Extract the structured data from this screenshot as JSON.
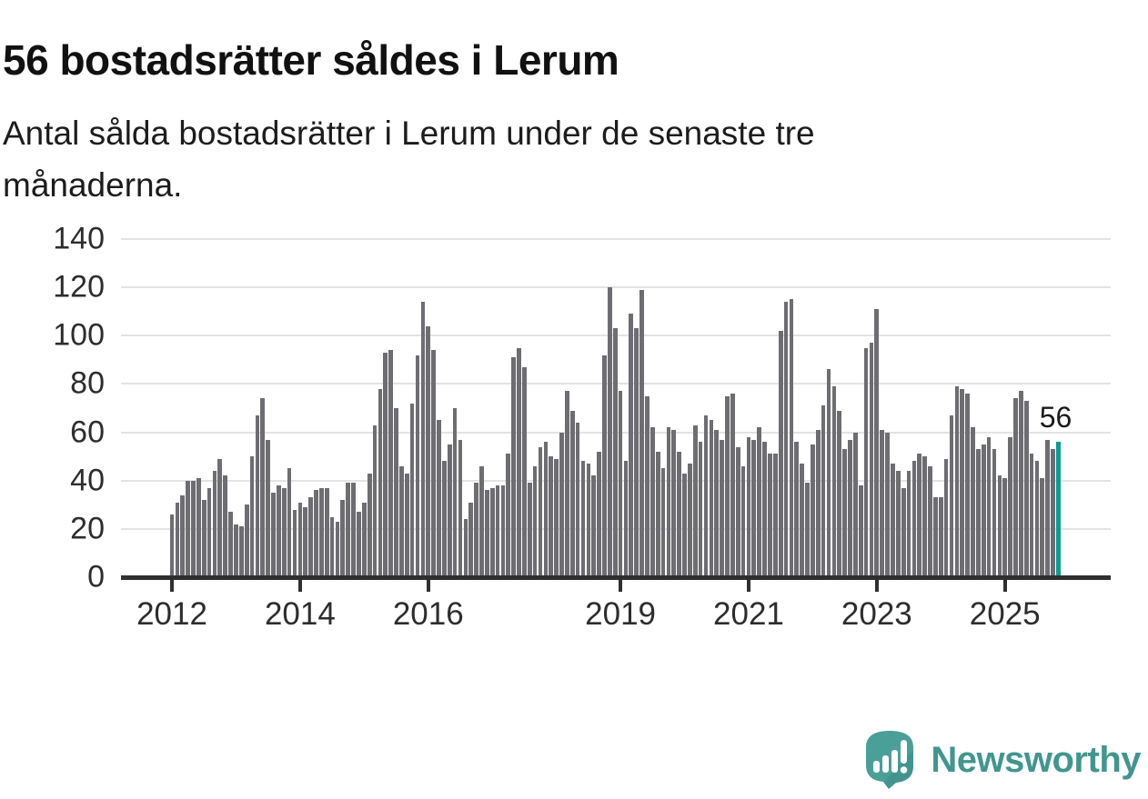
{
  "header": {
    "title": "56 bostadsrätter såldes i Lerum",
    "subtitle_lines": [
      "Antal sålda bostadsrätter i Lerum under de senaste tre",
      "månaderna."
    ]
  },
  "chart_data": {
    "type": "bar",
    "title": "56 bostadsrätter såldes i Lerum",
    "subtitle": "Antal sålda bostadsrätter i Lerum under de senaste tre månaderna.",
    "x_start_year": 2012,
    "x_end_year": 2025,
    "values": [
      26,
      31,
      34,
      40,
      40,
      41,
      32,
      37,
      44,
      49,
      42,
      27,
      22,
      21,
      30,
      50,
      67,
      74,
      57,
      35,
      38,
      37,
      45,
      28,
      31,
      29,
      33,
      36,
      37,
      37,
      25,
      23,
      32,
      39,
      39,
      27,
      31,
      43,
      63,
      78,
      93,
      94,
      70,
      46,
      43,
      72,
      92,
      114,
      104,
      94,
      65,
      48,
      55,
      70,
      57,
      24,
      31,
      39,
      46,
      36,
      37,
      38,
      38,
      51,
      91,
      95,
      87,
      39,
      46,
      54,
      56,
      50,
      49,
      60,
      77,
      69,
      64,
      48,
      47,
      42,
      52,
      92,
      120,
      103,
      77,
      48,
      109,
      103,
      119,
      75,
      62,
      52,
      45,
      62,
      61,
      52,
      43,
      47,
      63,
      56,
      67,
      65,
      61,
      57,
      75,
      76,
      54,
      46,
      58,
      57,
      62,
      56,
      51,
      51,
      102,
      114,
      115,
      56,
      47,
      39,
      55,
      61,
      71,
      86,
      79,
      69,
      53,
      57,
      60,
      38,
      95,
      97,
      111,
      61,
      60,
      47,
      44,
      37,
      44,
      48,
      51,
      50,
      46,
      33,
      33,
      49,
      67,
      79,
      78,
      76,
      62,
      53,
      55,
      58,
      53,
      42,
      41,
      58,
      74,
      77,
      73,
      51,
      48,
      41,
      57,
      53,
      56
    ],
    "highlight_last": true,
    "highlight_value_label": "56",
    "ylim": [
      0,
      140
    ],
    "y_ticks": [
      0,
      20,
      40,
      60,
      80,
      100,
      120,
      140
    ],
    "x_ticks": [
      {
        "label": "2012",
        "month_index": 0
      },
      {
        "label": "2014",
        "month_index": 24
      },
      {
        "label": "2016",
        "month_index": 48
      },
      {
        "label": "2019",
        "month_index": 84
      },
      {
        "label": "2021",
        "month_index": 108
      },
      {
        "label": "2023",
        "month_index": 132
      },
      {
        "label": "2025",
        "month_index": 156
      }
    ],
    "grid": "horizontal",
    "legend": "none",
    "colors": {
      "bar": "#6d6d72",
      "highlight": "#0d9b94",
      "gridline": "#e3e3e3",
      "axis": "#2f2f2f",
      "tick_text": "#2d2d2d",
      "annotation_text": "#1a1a1a"
    }
  },
  "footer": {
    "brand": "Newsworthy",
    "logo_icon": "newsworthy-speech-bubble-bar-chart-icon",
    "brand_color": "#41968f",
    "icon_color": "#4a9f99"
  }
}
